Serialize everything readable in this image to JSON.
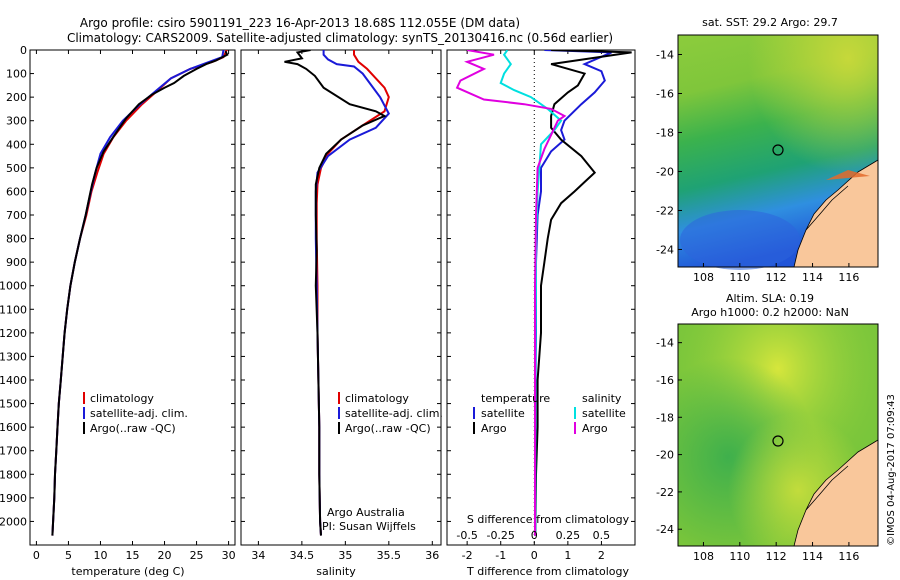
{
  "header": {
    "title_line1": "Argo profile: csiro 5901191_223 16-Apr-2013 18.68S 112.055E (DM data)",
    "title_line2": "Climatology: CARS2009. Satellite-adjusted climatology: synTS_20130416.nc (0.56d earlier)"
  },
  "colors": {
    "climatology": "#e00000",
    "satellite": "#1a1ad8",
    "argo": "#000000",
    "salinity_satellite": "#00e0e0",
    "salinity_argo": "#e000e0",
    "land": "#f9c79b"
  },
  "chart_data": [
    {
      "type": "line",
      "name": "temperature-profile",
      "xlabel": "temperature (deg C)",
      "ylim": [
        2100,
        0
      ],
      "xlim": [
        -1,
        31
      ],
      "xticks": [
        0,
        5,
        10,
        15,
        20,
        25,
        30
      ],
      "yticks": [
        0,
        100,
        200,
        300,
        400,
        500,
        600,
        700,
        800,
        900,
        1000,
        1100,
        1200,
        1300,
        1400,
        1500,
        1600,
        1700,
        1800,
        1900,
        2000
      ],
      "legend": [
        "climatology",
        "satellite-adj. clim.",
        "Argo(..raw -QC)"
      ],
      "series": [
        {
          "name": "climatology",
          "color": "#e00000",
          "points": [
            [
              29.7,
              0
            ],
            [
              29.2,
              30
            ],
            [
              27.5,
              50
            ],
            [
              24,
              80
            ],
            [
              21,
              120
            ],
            [
              19,
              170
            ],
            [
              16.5,
              230
            ],
            [
              14,
              300
            ],
            [
              12,
              370
            ],
            [
              10.5,
              440
            ],
            [
              9.5,
              520
            ],
            [
              8.6,
              600
            ],
            [
              7.8,
              700
            ],
            [
              6.8,
              800
            ],
            [
              6,
              900
            ],
            [
              5.3,
              1000
            ],
            [
              4.8,
              1100
            ],
            [
              4.4,
              1200
            ],
            [
              4.1,
              1300
            ],
            [
              3.8,
              1400
            ],
            [
              3.5,
              1500
            ],
            [
              3.3,
              1600
            ],
            [
              3.1,
              1700
            ],
            [
              2.9,
              1800
            ],
            [
              2.8,
              1900
            ],
            [
              2.6,
              2000
            ],
            [
              2.5,
              2060
            ]
          ]
        },
        {
          "name": "satellite-adj. clim.",
          "color": "#1a1ad8",
          "points": [
            [
              29.2,
              0
            ],
            [
              29,
              30
            ],
            [
              27,
              50
            ],
            [
              24,
              80
            ],
            [
              21,
              120
            ],
            [
              18.8,
              170
            ],
            [
              16.2,
              230
            ],
            [
              13.5,
              300
            ],
            [
              11.5,
              370
            ],
            [
              10,
              440
            ],
            [
              9.2,
              520
            ],
            [
              8.5,
              600
            ],
            [
              7.7,
              700
            ],
            [
              6.8,
              800
            ],
            [
              6,
              900
            ],
            [
              5.3,
              1000
            ],
            [
              4.8,
              1100
            ],
            [
              4.4,
              1200
            ],
            [
              4.1,
              1300
            ],
            [
              3.8,
              1400
            ],
            [
              3.5,
              1500
            ],
            [
              3.3,
              1600
            ],
            [
              3.1,
              1700
            ],
            [
              2.9,
              1800
            ],
            [
              2.8,
              1900
            ],
            [
              2.6,
              2000
            ],
            [
              2.5,
              2060
            ]
          ]
        },
        {
          "name": "Argo(..raw -QC)",
          "color": "#000000",
          "points": [
            [
              29.5,
              5
            ],
            [
              29.8,
              20
            ],
            [
              28,
              45
            ],
            [
              26.5,
              60
            ],
            [
              25,
              80
            ],
            [
              23,
              110
            ],
            [
              21.5,
              140
            ],
            [
              20,
              160
            ],
            [
              18,
              190
            ],
            [
              16,
              230
            ],
            [
              14,
              290
            ],
            [
              12.2,
              360
            ],
            [
              10.5,
              430
            ],
            [
              9.4,
              500
            ],
            [
              8.7,
              570
            ],
            [
              8.3,
              620
            ],
            [
              7.7,
              700
            ],
            [
              6.8,
              800
            ],
            [
              6,
              900
            ],
            [
              5.3,
              1000
            ],
            [
              4.8,
              1100
            ],
            [
              4.4,
              1200
            ],
            [
              4.1,
              1300
            ],
            [
              3.8,
              1400
            ],
            [
              3.5,
              1500
            ],
            [
              3.3,
              1600
            ],
            [
              3.1,
              1700
            ],
            [
              2.9,
              1800
            ],
            [
              2.8,
              1900
            ],
            [
              2.6,
              2000
            ],
            [
              2.5,
              2060
            ]
          ]
        }
      ]
    },
    {
      "type": "line",
      "name": "salinity-profile",
      "xlabel": "salinity",
      "ylim": [
        2100,
        0
      ],
      "xlim": [
        33.8,
        36.1
      ],
      "xticks": [
        34,
        34.5,
        35,
        35.5,
        36
      ],
      "legend": [
        "climatology",
        "satellite-adj. clim.",
        "Argo(..raw -QC)"
      ],
      "annotation": [
        "Argo Australia",
        "PI: Susan Wijffels"
      ],
      "series": [
        {
          "name": "climatology",
          "color": "#e00000",
          "points": [
            [
              35.1,
              0
            ],
            [
              35.1,
              20
            ],
            [
              35.15,
              50
            ],
            [
              35.25,
              80
            ],
            [
              35.35,
              120
            ],
            [
              35.45,
              160
            ],
            [
              35.5,
              200
            ],
            [
              35.45,
              260
            ],
            [
              35.2,
              320
            ],
            [
              34.95,
              380
            ],
            [
              34.8,
              440
            ],
            [
              34.72,
              500
            ],
            [
              34.68,
              570
            ],
            [
              34.67,
              650
            ],
            [
              34.67,
              800
            ],
            [
              34.68,
              1000
            ],
            [
              34.68,
              1200
            ],
            [
              34.69,
              1400
            ],
            [
              34.7,
              1600
            ],
            [
              34.7,
              1800
            ],
            [
              34.71,
              2000
            ],
            [
              34.72,
              2060
            ]
          ]
        },
        {
          "name": "satellite-adj. clim.",
          "color": "#1a1ad8",
          "points": [
            [
              34.75,
              0
            ],
            [
              34.75,
              20
            ],
            [
              34.8,
              40
            ],
            [
              34.9,
              60
            ],
            [
              35.1,
              70
            ],
            [
              35.2,
              100
            ],
            [
              35.3,
              150
            ],
            [
              35.4,
              200
            ],
            [
              35.5,
              270
            ],
            [
              35.35,
              330
            ],
            [
              35.05,
              380
            ],
            [
              34.8,
              450
            ],
            [
              34.68,
              520
            ],
            [
              34.66,
              600
            ],
            [
              34.66,
              800
            ],
            [
              34.67,
              1000
            ],
            [
              34.68,
              1200
            ],
            [
              34.69,
              1400
            ],
            [
              34.7,
              1600
            ],
            [
              34.7,
              1800
            ],
            [
              34.71,
              2000
            ],
            [
              34.72,
              2060
            ]
          ]
        },
        {
          "name": "Argo(..raw -QC)",
          "color": "#000000",
          "points": [
            [
              34.6,
              0
            ],
            [
              34.45,
              10
            ],
            [
              34.5,
              35
            ],
            [
              34.3,
              50
            ],
            [
              34.45,
              60
            ],
            [
              34.55,
              80
            ],
            [
              34.65,
              110
            ],
            [
              34.75,
              160
            ],
            [
              35.05,
              230
            ],
            [
              35.35,
              260
            ],
            [
              35.45,
              280
            ],
            [
              35.2,
              320
            ],
            [
              34.95,
              380
            ],
            [
              34.78,
              440
            ],
            [
              34.7,
              500
            ],
            [
              34.66,
              570
            ],
            [
              34.66,
              700
            ],
            [
              34.67,
              850
            ],
            [
              34.66,
              1000
            ],
            [
              34.68,
              1200
            ],
            [
              34.69,
              1400
            ],
            [
              34.7,
              1600
            ],
            [
              34.7,
              1800
            ],
            [
              34.71,
              2000
            ],
            [
              34.72,
              2060
            ]
          ]
        }
      ]
    },
    {
      "type": "line",
      "name": "difference-from-climatology",
      "xlabel": "T difference from climatology",
      "xlabel_top": "S difference from climatology",
      "ylim": [
        2100,
        0
      ],
      "xlim": [
        -2.6,
        3
      ],
      "xticks": [
        -2,
        -1,
        0,
        1,
        2
      ],
      "xticks_top": [
        -0.5,
        -0.25,
        0,
        0.25,
        0.5
      ],
      "legend_temperature": [
        "temperature",
        "satellite",
        "Argo"
      ],
      "legend_salinity": [
        "salinity",
        "satellite",
        "Argo"
      ],
      "series": [
        {
          "name": "temperature satellite",
          "color": "#1a1ad8",
          "points": [
            [
              0.3,
              0
            ],
            [
              2.3,
              10
            ],
            [
              1.5,
              60
            ],
            [
              2,
              90
            ],
            [
              2.1,
              130
            ],
            [
              1.8,
              180
            ],
            [
              1.4,
              230
            ],
            [
              0.9,
              300
            ],
            [
              0.8,
              340
            ],
            [
              0.9,
              380
            ],
            [
              0.5,
              430
            ],
            [
              0.2,
              500
            ],
            [
              0.2,
              600
            ],
            [
              0.1,
              700
            ],
            [
              0.05,
              900
            ],
            [
              0.05,
              1200
            ],
            [
              0.03,
              1500
            ],
            [
              0.03,
              2060
            ]
          ]
        },
        {
          "name": "temperature Argo",
          "color": "#000000",
          "points": [
            [
              0.5,
              0
            ],
            [
              2.9,
              10
            ],
            [
              0.5,
              60
            ],
            [
              1.5,
              100
            ],
            [
              1.3,
              150
            ],
            [
              1,
              180
            ],
            [
              0.6,
              230
            ],
            [
              0.5,
              280
            ],
            [
              0.5,
              330
            ],
            [
              0.8,
              380
            ],
            [
              1.4,
              450
            ],
            [
              1.8,
              520
            ],
            [
              1.5,
              560
            ],
            [
              1.2,
              600
            ],
            [
              0.8,
              650
            ],
            [
              0.5,
              720
            ],
            [
              0.4,
              800
            ],
            [
              0.3,
              900
            ],
            [
              0.2,
              1000
            ],
            [
              0.2,
              1200
            ],
            [
              0.1,
              1400
            ],
            [
              0.1,
              1600
            ],
            [
              0.05,
              1800
            ],
            [
              0.03,
              2060
            ]
          ]
        },
        {
          "name": "salinity satellite",
          "color": "#00e0e0",
          "points": [
            [
              -0.8,
              0
            ],
            [
              -0.9,
              20
            ],
            [
              -0.7,
              60
            ],
            [
              -0.9,
              100
            ],
            [
              -1,
              140
            ],
            [
              -0.6,
              170
            ],
            [
              -0.1,
              200
            ],
            [
              0.4,
              250
            ],
            [
              0.8,
              300
            ],
            [
              0.6,
              340
            ],
            [
              0.2,
              400
            ],
            [
              0.15,
              500
            ],
            [
              0.1,
              600
            ],
            [
              0.05,
              800
            ],
            [
              0.05,
              1000
            ],
            [
              0.03,
              1400
            ],
            [
              0.03,
              2060
            ]
          ]
        },
        {
          "name": "salinity Argo",
          "color": "#e000e0",
          "points": [
            [
              -2,
              0
            ],
            [
              -1.2,
              20
            ],
            [
              -2,
              50
            ],
            [
              -1.5,
              80
            ],
            [
              -2.2,
              130
            ],
            [
              -2.3,
              160
            ],
            [
              -1.5,
              210
            ],
            [
              -0.3,
              230
            ],
            [
              0.5,
              250
            ],
            [
              0.9,
              280
            ],
            [
              0.7,
              300
            ],
            [
              0.5,
              360
            ],
            [
              0.3,
              420
            ],
            [
              0.1,
              500
            ],
            [
              0.05,
              700
            ],
            [
              0.02,
              1000
            ],
            [
              0.02,
              2060
            ]
          ]
        }
      ]
    }
  ],
  "maps": {
    "sst_map": {
      "title": "sat. SST: 29.2 Argo: 29.7",
      "xticks": [
        "108",
        "110",
        "112",
        "114",
        "116"
      ],
      "yticks": [
        "-14",
        "-16",
        "-18",
        "-20",
        "-22",
        "-24"
      ]
    },
    "sla_map": {
      "title_line1": "Altim. SLA: 0.19",
      "title_line2": "Argo h1000: 0.2 h2000: NaN",
      "xticks": [
        "108",
        "110",
        "112",
        "114",
        "116"
      ],
      "yticks": [
        "-14",
        "-16",
        "-18",
        "-20",
        "-22",
        "-24"
      ]
    }
  },
  "side_label": "©IMOS 04-Aug-2017 07:09:43"
}
